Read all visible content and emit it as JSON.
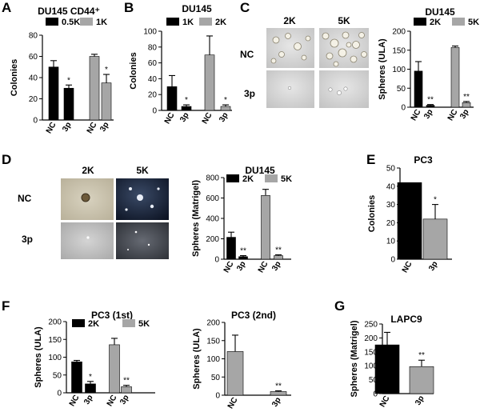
{
  "colors": {
    "black": "#000000",
    "gray": "#a6a6a6",
    "dark_gray": "#8a8a8a",
    "axis": "#000000"
  },
  "panel_labels": {
    "A": "A",
    "B": "B",
    "C": "C",
    "D": "D",
    "E": "E",
    "F": "F",
    "G": "G"
  },
  "image_grids": {
    "C": {
      "col_labels": [
        "2K",
        "5K"
      ],
      "row_labels": [
        "NC",
        "3p"
      ]
    },
    "D": {
      "col_labels": [
        "2K",
        "5K"
      ],
      "row_labels": [
        "NC",
        "3p"
      ]
    }
  },
  "chart_data": [
    {
      "id": "A",
      "type": "bar",
      "title": "DU145 CD44⁺",
      "ylabel": "Colonies",
      "ylim": [
        0,
        80
      ],
      "yticks": [
        0,
        20,
        40,
        60,
        80
      ],
      "legend": [
        "0.5K",
        "1K"
      ],
      "legend_colors": [
        "#000000",
        "#a6a6a6"
      ],
      "categories": [
        "NC",
        "3p",
        "NC",
        "3p"
      ],
      "values": [
        50,
        30,
        60,
        35
      ],
      "errors": [
        6,
        3,
        2,
        8
      ],
      "bar_colors": [
        "#000000",
        "#000000",
        "#a6a6a6",
        "#a6a6a6"
      ],
      "significance": [
        "",
        "*",
        "",
        "*"
      ]
    },
    {
      "id": "B",
      "type": "bar",
      "title": "DU145",
      "ylabel": "Colonies",
      "ylim": [
        0,
        100
      ],
      "yticks": [
        0,
        20,
        40,
        60,
        80,
        100
      ],
      "legend": [
        "1K",
        "2K"
      ],
      "legend_colors": [
        "#000000",
        "#a6a6a6"
      ],
      "categories": [
        "NC",
        "3p",
        "NC",
        "3p"
      ],
      "values": [
        30,
        5,
        70,
        5
      ],
      "errors": [
        14,
        2,
        24,
        2
      ],
      "bar_colors": [
        "#000000",
        "#000000",
        "#a6a6a6",
        "#a6a6a6"
      ],
      "significance": [
        "",
        "*",
        "",
        "*"
      ]
    },
    {
      "id": "C",
      "type": "bar",
      "title": "DU145",
      "ylabel": "Spheres (ULA)",
      "ylim": [
        0,
        200
      ],
      "yticks": [
        0,
        50,
        100,
        150,
        200
      ],
      "legend": [
        "2K",
        "5K"
      ],
      "legend_colors": [
        "#000000",
        "#a6a6a6"
      ],
      "categories": [
        "NC",
        "3p",
        "NC",
        "3p"
      ],
      "values": [
        95,
        5,
        157,
        12
      ],
      "errors": [
        25,
        2,
        4,
        3
      ],
      "bar_colors": [
        "#000000",
        "#000000",
        "#a6a6a6",
        "#a6a6a6"
      ],
      "significance": [
        "",
        "**",
        "",
        "**"
      ]
    },
    {
      "id": "D",
      "type": "bar",
      "title": "DU145",
      "ylabel": "Spheres (Matrigel)",
      "ylim": [
        0,
        800
      ],
      "yticks": [
        0,
        200,
        400,
        600,
        800
      ],
      "legend": [
        "2K",
        "5K"
      ],
      "legend_colors": [
        "#000000",
        "#a6a6a6"
      ],
      "categories": [
        "NC",
        "3p",
        "NC",
        "3p"
      ],
      "values": [
        215,
        25,
        625,
        35
      ],
      "errors": [
        50,
        10,
        60,
        8
      ],
      "bar_colors": [
        "#000000",
        "#000000",
        "#a6a6a6",
        "#a6a6a6"
      ],
      "significance": [
        "",
        "**",
        "",
        "**"
      ]
    },
    {
      "id": "E",
      "type": "bar",
      "title": "PC3",
      "ylabel": "Colonies",
      "ylim": [
        0,
        50
      ],
      "yticks": [
        0,
        10,
        20,
        30,
        40,
        50
      ],
      "legend": [],
      "legend_colors": [],
      "categories": [
        "NC",
        "3p"
      ],
      "values": [
        42,
        22
      ],
      "errors": [
        0,
        8
      ],
      "bar_colors": [
        "#000000",
        "#a6a6a6"
      ],
      "significance": [
        "",
        "*"
      ]
    },
    {
      "id": "F1",
      "type": "bar",
      "title": "PC3 (1st)",
      "ylabel": "Spheres (ULA)",
      "ylim": [
        0,
        200
      ],
      "yticks": [
        0,
        50,
        100,
        150,
        200
      ],
      "legend": [
        "2K",
        "5K"
      ],
      "legend_colors": [
        "#000000",
        "#a6a6a6"
      ],
      "categories": [
        "NC",
        "3p",
        "NC",
        "3p"
      ],
      "values": [
        87,
        25,
        135,
        17
      ],
      "errors": [
        4,
        7,
        18,
        4
      ],
      "bar_colors": [
        "#000000",
        "#000000",
        "#a6a6a6",
        "#a6a6a6"
      ],
      "significance": [
        "",
        "*",
        "",
        "**"
      ]
    },
    {
      "id": "F2",
      "type": "bar",
      "title": "PC3 (2nd)",
      "ylabel": "Spheres (ULA)",
      "ylim": [
        0,
        200
      ],
      "yticks": [
        0,
        50,
        100,
        150,
        200
      ],
      "legend": [],
      "legend_colors": [],
      "categories": [
        "NC",
        "3p"
      ],
      "values": [
        120,
        10
      ],
      "errors": [
        45,
        2
      ],
      "bar_colors": [
        "#a6a6a6",
        "#a6a6a6"
      ],
      "significance": [
        "",
        "**"
      ]
    },
    {
      "id": "G",
      "type": "bar",
      "title": "LAPC9",
      "ylabel": "Spheres (Matrigel)",
      "ylim": [
        0,
        250
      ],
      "yticks": [
        0,
        50,
        100,
        150,
        200,
        250
      ],
      "legend": [],
      "legend_colors": [],
      "categories": [
        "NC",
        "3p"
      ],
      "values": [
        175,
        97
      ],
      "errors": [
        45,
        23
      ],
      "bar_colors": [
        "#000000",
        "#a6a6a6"
      ],
      "significance": [
        "",
        "**"
      ]
    }
  ]
}
